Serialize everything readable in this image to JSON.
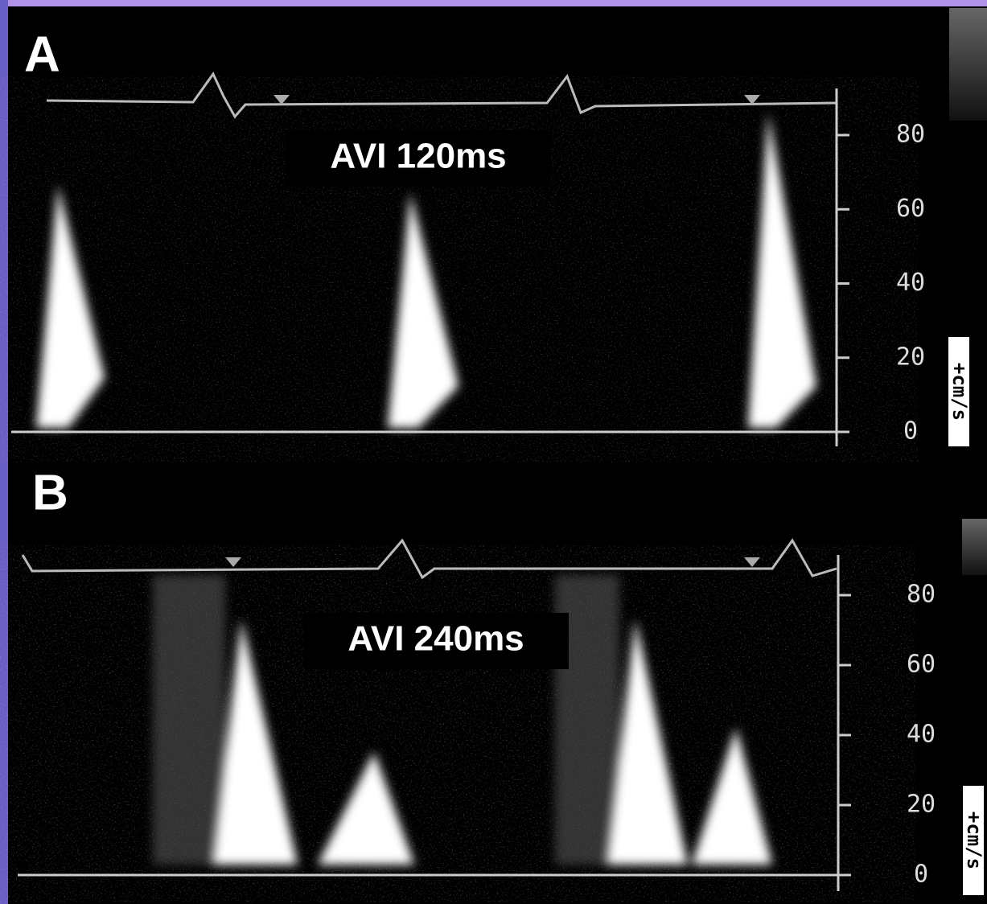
{
  "panels": [
    {
      "label": "A",
      "annotation": "AVI 120ms",
      "ticks": [
        "80",
        "60",
        "40",
        "20",
        "0"
      ],
      "unit": "+cm/s"
    },
    {
      "label": "B",
      "annotation": "AVI 240ms",
      "ticks": [
        "80",
        "60",
        "40",
        "20",
        "0"
      ],
      "unit": "+cm/s"
    }
  ]
}
